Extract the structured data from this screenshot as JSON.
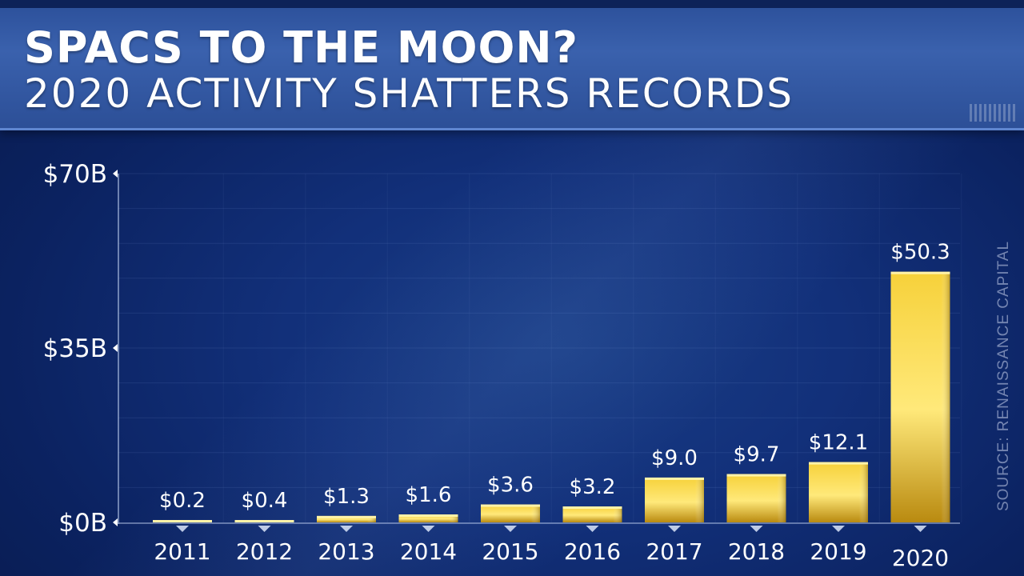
{
  "header": {
    "title": "SPACS TO THE MOON?",
    "subtitle": "2020 ACTIVITY SHATTERS RECORDS"
  },
  "source": "SOURCE: RENAISSANCE CAPITAL",
  "colors": {
    "background": "#12307a",
    "bar": "#f2c520",
    "text": "#ffffff"
  },
  "chart_data": {
    "type": "bar",
    "title": "SPACS TO THE MOON?",
    "subtitle": "2020 ACTIVITY SHATTERS RECORDS",
    "categories": [
      "2011",
      "2012",
      "2013",
      "2014",
      "2015",
      "2016",
      "2017",
      "2018",
      "2019",
      "2020"
    ],
    "values": [
      0.2,
      0.4,
      1.3,
      1.6,
      3.6,
      3.2,
      9.0,
      9.7,
      12.1,
      50.3
    ],
    "data_labels": [
      "$0.2",
      "$0.4",
      "$1.3",
      "$1.6",
      "$3.6",
      "$3.2",
      "$9.0",
      "$9.7",
      "$12.1",
      "$50.3"
    ],
    "y_ticks": [
      0,
      35,
      70
    ],
    "y_tick_labels": [
      "$0B",
      "$35B",
      "$70B"
    ],
    "ylim": [
      0,
      70
    ],
    "xlabel": "",
    "ylabel": "",
    "grid": true
  }
}
